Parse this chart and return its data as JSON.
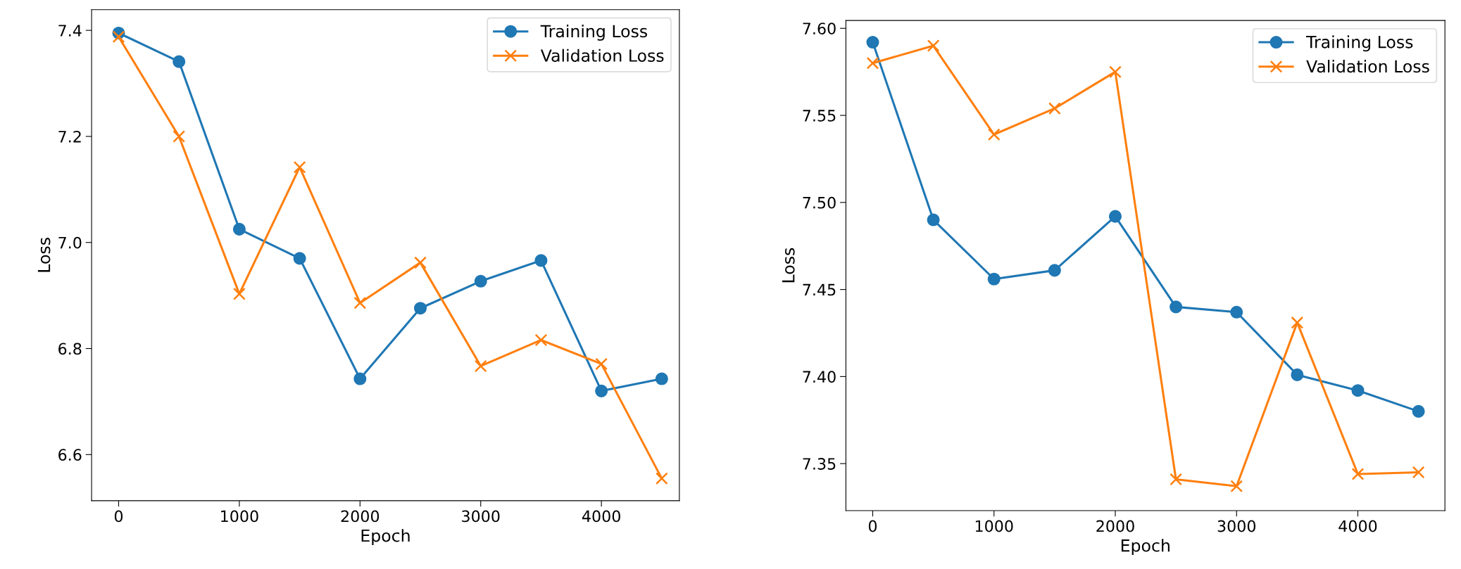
{
  "chart_data": [
    {
      "type": "line",
      "xlabel": "Epoch",
      "ylabel": "Loss",
      "x": [
        0,
        500,
        1000,
        1500,
        2000,
        2500,
        3000,
        3500,
        4000,
        4500
      ],
      "xlim": [
        -224,
        4646
      ],
      "xticks": [
        0,
        1000,
        2000,
        3000,
        4000
      ],
      "ylim": [
        6.513,
        7.439
      ],
      "yticks": [
        6.6,
        6.8,
        {
          "value": 7,
          "label": "7.0"
        },
        7.2,
        7.4
      ],
      "legend": "top right",
      "grid": false,
      "series": [
        {
          "name": "Training Loss",
          "color": "#1f77b4",
          "marker": "circle",
          "values": [
            7.395,
            7.341,
            7.025,
            6.97,
            6.743,
            6.876,
            6.927,
            6.966,
            6.72,
            6.743
          ]
        },
        {
          "name": "Validation Loss",
          "color": "#ff7f0e",
          "marker": "cross",
          "values": [
            7.388,
            7.2,
            6.903,
            7.142,
            6.886,
            6.962,
            6.767,
            6.816,
            6.771,
            6.555
          ]
        }
      ]
    },
    {
      "type": "line",
      "xlabel": "Epoch",
      "ylabel": "Loss",
      "x": [
        0,
        500,
        1000,
        1500,
        2000,
        2500,
        3000,
        3500,
        4000,
        4500
      ],
      "xlim": [
        -221,
        4718
      ],
      "xticks": [
        0,
        1000,
        2000,
        3000,
        4000
      ],
      "ylim": [
        7.323,
        7.6045
      ],
      "yticks": [
        {
          "value": 7.35,
          "label": "7.35"
        },
        {
          "value": 7.4,
          "label": "7.40"
        },
        {
          "value": 7.45,
          "label": "7.45"
        },
        {
          "value": 7.5,
          "label": "7.50"
        },
        {
          "value": 7.55,
          "label": "7.55"
        },
        {
          "value": 7.6,
          "label": "7.60"
        }
      ],
      "legend": "top right",
      "grid": false,
      "series": [
        {
          "name": "Training Loss",
          "color": "#1f77b4",
          "marker": "circle",
          "values": [
            7.592,
            7.49,
            7.456,
            7.461,
            7.492,
            7.44,
            7.437,
            7.401,
            7.392,
            7.38
          ]
        },
        {
          "name": "Validation Loss",
          "color": "#ff7f0e",
          "marker": "cross",
          "values": [
            7.58,
            7.59,
            7.539,
            7.554,
            7.575,
            7.341,
            7.337,
            7.431,
            7.344,
            7.345
          ]
        }
      ]
    }
  ]
}
